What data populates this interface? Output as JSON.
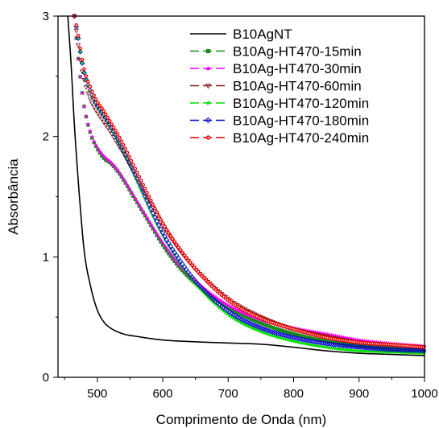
{
  "chart_data": {
    "type": "line",
    "title": "",
    "xlabel": "Comprimento de Onda (nm)",
    "ylabel": "Absorbância",
    "xlim": [
      440,
      1000
    ],
    "ylim": [
      0,
      3
    ],
    "x_ticks": [
      500,
      600,
      700,
      800,
      900,
      1000
    ],
    "y_ticks": [
      0,
      1,
      2,
      3
    ],
    "x_tick_labels": [
      "500",
      "600",
      "700",
      "800",
      "900",
      "1000"
    ],
    "y_tick_labels": [
      "0",
      "1",
      "2",
      "3"
    ],
    "grid": false,
    "legend_position": "top-right",
    "series": [
      {
        "name": "B10AgNT",
        "color": "#000000",
        "marker": "none",
        "x": [
          455,
          460,
          465,
          470,
          475,
          480,
          490,
          500,
          510,
          520,
          540,
          560,
          600,
          650,
          700,
          750,
          800,
          850,
          900,
          950,
          1000
        ],
        "y": [
          3.0,
          2.6,
          2.1,
          1.7,
          1.35,
          1.05,
          0.75,
          0.56,
          0.46,
          0.41,
          0.36,
          0.34,
          0.31,
          0.295,
          0.285,
          0.275,
          0.25,
          0.22,
          0.2,
          0.19,
          0.18
        ]
      },
      {
        "name": "B10Ag-HT470-15min",
        "color": "#1a8a1a",
        "marker": "square",
        "x": [
          465,
          470,
          475,
          480,
          490,
          500,
          510,
          520,
          530,
          540,
          550,
          560,
          570,
          580,
          600,
          620,
          650,
          700,
          750,
          800,
          850,
          900,
          950,
          1000
        ],
        "y": [
          3.0,
          2.7,
          2.45,
          2.25,
          2.02,
          1.9,
          1.82,
          1.78,
          1.72,
          1.64,
          1.55,
          1.46,
          1.37,
          1.28,
          1.1,
          0.95,
          0.78,
          0.58,
          0.45,
          0.36,
          0.3,
          0.26,
          0.24,
          0.22
        ]
      },
      {
        "name": "B10Ag-HT470-30min",
        "color": "#ff00ff",
        "marker": "triangle-up",
        "x": [
          465,
          470,
          475,
          480,
          490,
          500,
          510,
          520,
          530,
          540,
          550,
          560,
          570,
          580,
          600,
          620,
          650,
          700,
          750,
          800,
          850,
          900,
          950,
          1000
        ],
        "y": [
          3.0,
          2.7,
          2.45,
          2.25,
          2.03,
          1.91,
          1.84,
          1.79,
          1.73,
          1.65,
          1.56,
          1.47,
          1.38,
          1.29,
          1.12,
          0.97,
          0.8,
          0.6,
          0.48,
          0.41,
          0.36,
          0.31,
          0.28,
          0.26
        ]
      },
      {
        "name": "B10Ag-HT470-60min",
        "color": "#8b1a1a",
        "marker": "triangle-down",
        "x": [
          465,
          470,
          475,
          480,
          490,
          500,
          510,
          520,
          530,
          540,
          550,
          560,
          570,
          580,
          600,
          620,
          650,
          700,
          750,
          800,
          850,
          900,
          950,
          1000
        ],
        "y": [
          3.0,
          2.8,
          2.6,
          2.47,
          2.3,
          2.2,
          2.12,
          2.04,
          1.95,
          1.86,
          1.76,
          1.66,
          1.56,
          1.46,
          1.26,
          1.1,
          0.9,
          0.65,
          0.5,
          0.4,
          0.34,
          0.29,
          0.27,
          0.25
        ]
      },
      {
        "name": "B10Ag-HT470-120min",
        "color": "#00e000",
        "marker": "star",
        "x": [
          465,
          470,
          475,
          480,
          490,
          500,
          510,
          520,
          530,
          540,
          550,
          560,
          570,
          580,
          600,
          620,
          650,
          700,
          750,
          800,
          850,
          900,
          950,
          1000
        ],
        "y": [
          3.0,
          2.85,
          2.67,
          2.53,
          2.36,
          2.25,
          2.17,
          2.08,
          1.98,
          1.87,
          1.76,
          1.64,
          1.52,
          1.4,
          1.18,
          1.0,
          0.78,
          0.52,
          0.38,
          0.3,
          0.25,
          0.22,
          0.21,
          0.2
        ]
      },
      {
        "name": "B10Ag-HT470-180min",
        "color": "#0000cc",
        "marker": "diamond",
        "x": [
          465,
          470,
          475,
          480,
          490,
          500,
          510,
          520,
          530,
          540,
          550,
          560,
          570,
          580,
          600,
          620,
          650,
          700,
          750,
          800,
          850,
          900,
          950,
          1000
        ],
        "y": [
          3.0,
          2.85,
          2.67,
          2.53,
          2.37,
          2.26,
          2.18,
          2.09,
          1.99,
          1.88,
          1.77,
          1.66,
          1.54,
          1.42,
          1.2,
          1.02,
          0.8,
          0.55,
          0.41,
          0.33,
          0.28,
          0.25,
          0.23,
          0.22
        ]
      },
      {
        "name": "B10Ag-HT470-240min",
        "color": "#ee0000",
        "marker": "circle",
        "x": [
          465,
          470,
          475,
          480,
          490,
          500,
          510,
          520,
          530,
          540,
          550,
          560,
          570,
          580,
          600,
          620,
          650,
          700,
          750,
          800,
          850,
          900,
          950,
          1000
        ],
        "y": [
          3.0,
          2.87,
          2.7,
          2.56,
          2.4,
          2.29,
          2.21,
          2.12,
          2.03,
          1.93,
          1.82,
          1.71,
          1.6,
          1.49,
          1.28,
          1.11,
          0.9,
          0.64,
          0.49,
          0.4,
          0.33,
          0.29,
          0.27,
          0.25
        ]
      }
    ]
  }
}
